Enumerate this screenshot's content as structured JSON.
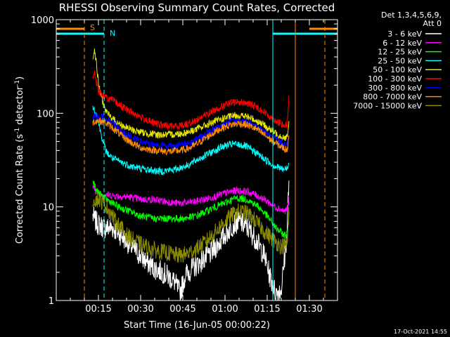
{
  "chart_data": {
    "type": "line",
    "title": "RHESSI Observing Summary Count Rates, Corrected",
    "xlabel": "Start Time (16-Jun-05 00:00:22)",
    "ylabel": "Corrected Count Rate (s⁻¹ detector⁻¹)",
    "ylabel_main": "Corrected Count Rate (s",
    "ylabel_sup1": "-1",
    "ylabel_mid": " detector",
    "ylabel_sup2": "-1",
    "ylabel_end": ")",
    "yscale": "log",
    "ylim": [
      1,
      1000
    ],
    "xlim_minutes": [
      0,
      100
    ],
    "x_ticks": [
      {
        "m": 15,
        "label": "00:15"
      },
      {
        "m": 30,
        "label": "00:30"
      },
      {
        "m": 45,
        "label": "00:45"
      },
      {
        "m": 60,
        "label": "01:00"
      },
      {
        "m": 75,
        "label": "01:15"
      },
      {
        "m": 90,
        "label": "01:30"
      }
    ],
    "y_ticks": [
      {
        "v": 1,
        "label": "1"
      },
      {
        "v": 10,
        "label": "10"
      },
      {
        "v": 100,
        "label": "100"
      },
      {
        "v": 1000,
        "label": "1000"
      }
    ],
    "legend_header": [
      "Det 1,3,4,5,6,9,",
      "Att 0"
    ],
    "legend": [
      {
        "name": "3 - 6 keV",
        "color": "#ffffff"
      },
      {
        "name": "6 - 12 keV",
        "color": "#ff00ff"
      },
      {
        "name": "12 - 25 keV",
        "color": "#00ff00"
      },
      {
        "name": "25 - 50 keV",
        "color": "#00ffff"
      },
      {
        "name": "50 - 100 keV",
        "color": "#e6e600"
      },
      {
        "name": "100 - 300 keV",
        "color": "#ff0000"
      },
      {
        "name": "300 - 800 keV",
        "color": "#0000ff"
      },
      {
        "name": "800 - 7000 keV",
        "color": "#ff8c00"
      },
      {
        "name": "7000 - 15000 keV",
        "color": "#8b8b00"
      }
    ],
    "series": [
      {
        "name": "3 - 6 keV",
        "color": "#ffffff",
        "points": [
          [
            13.0,
            8
          ],
          [
            14,
            7
          ],
          [
            15,
            6.5
          ],
          [
            17,
            6
          ],
          [
            20,
            6
          ],
          [
            23,
            5
          ],
          [
            26,
            4
          ],
          [
            29,
            3.2
          ],
          [
            32,
            2.6
          ],
          [
            35,
            2.2
          ],
          [
            38,
            2
          ],
          [
            42,
            1.6
          ],
          [
            44,
            1.2
          ],
          [
            46,
            1.9
          ],
          [
            50,
            2.4
          ],
          [
            55,
            3.2
          ],
          [
            60,
            5
          ],
          [
            63,
            6.5
          ],
          [
            65,
            7
          ],
          [
            68,
            6
          ],
          [
            71,
            4.5
          ],
          [
            74,
            3
          ],
          [
            76,
            1.8
          ],
          [
            78,
            1.2
          ],
          [
            80,
            1.3
          ],
          [
            81,
            2.5
          ],
          [
            82,
            5
          ],
          [
            82.8,
            22
          ]
        ]
      },
      {
        "name": "6 - 12 keV",
        "color": "#ff00ff",
        "points": [
          [
            13.0,
            16
          ],
          [
            14,
            15
          ],
          [
            15,
            14
          ],
          [
            18,
            13.5
          ],
          [
            22,
            13
          ],
          [
            26,
            12.8
          ],
          [
            30,
            12
          ],
          [
            34,
            12
          ],
          [
            38,
            11.5
          ],
          [
            42,
            11
          ],
          [
            46,
            11
          ],
          [
            50,
            11.5
          ],
          [
            55,
            12.5
          ],
          [
            60,
            14
          ],
          [
            64,
            15
          ],
          [
            68,
            14.5
          ],
          [
            72,
            13
          ],
          [
            75,
            11.5
          ],
          [
            78,
            10
          ],
          [
            81,
            9
          ],
          [
            82.2,
            9.5
          ],
          [
            82.8,
            12
          ]
        ]
      },
      {
        "name": "12 - 25 keV",
        "color": "#00ff00",
        "points": [
          [
            13.0,
            19
          ],
          [
            14,
            16
          ],
          [
            15,
            14
          ],
          [
            18,
            12
          ],
          [
            22,
            10
          ],
          [
            26,
            9
          ],
          [
            30,
            8
          ],
          [
            35,
            7.5
          ],
          [
            40,
            7.5
          ],
          [
            45,
            7.5
          ],
          [
            50,
            8
          ],
          [
            55,
            9.5
          ],
          [
            60,
            11
          ],
          [
            64,
            12.5
          ],
          [
            68,
            12
          ],
          [
            72,
            10
          ],
          [
            75,
            8
          ],
          [
            78,
            6
          ],
          [
            81,
            5
          ],
          [
            82.2,
            5.2
          ],
          [
            82.8,
            9
          ]
        ]
      },
      {
        "name": "25 - 50 keV",
        "color": "#00ffff",
        "points": [
          [
            13.0,
            120
          ],
          [
            14,
            100
          ],
          [
            15,
            80
          ],
          [
            16,
            60
          ],
          [
            17,
            45
          ],
          [
            18,
            38
          ],
          [
            20,
            33
          ],
          [
            23,
            30
          ],
          [
            27,
            27
          ],
          [
            32,
            25
          ],
          [
            37,
            24
          ],
          [
            42,
            25
          ],
          [
            47,
            28
          ],
          [
            51,
            33
          ],
          [
            55,
            38
          ],
          [
            59,
            44
          ],
          [
            63,
            47
          ],
          [
            67,
            45
          ],
          [
            71,
            38
          ],
          [
            75,
            31
          ],
          [
            78,
            27
          ],
          [
            81,
            25
          ],
          [
            82.2,
            26
          ],
          [
            82.8,
            30
          ]
        ]
      },
      {
        "name": "50 - 100 keV",
        "color": "#e6e600",
        "points": [
          [
            13.0,
            400
          ],
          [
            13.6,
            480
          ],
          [
            14.2,
            360
          ],
          [
            15,
            210
          ],
          [
            16,
            150
          ],
          [
            17,
            120
          ],
          [
            18,
            100
          ],
          [
            20,
            88
          ],
          [
            22,
            78
          ],
          [
            25,
            70
          ],
          [
            28,
            65
          ],
          [
            32,
            61
          ],
          [
            36,
            59
          ],
          [
            40,
            59
          ],
          [
            45,
            61
          ],
          [
            49,
            66
          ],
          [
            53,
            74
          ],
          [
            57,
            83
          ],
          [
            61,
            91
          ],
          [
            64,
            95
          ],
          [
            67,
            93
          ],
          [
            70,
            87
          ],
          [
            73,
            78
          ],
          [
            76,
            67
          ],
          [
            79,
            59
          ],
          [
            81,
            55
          ],
          [
            82.2,
            56
          ],
          [
            82.8,
            80
          ]
        ]
      },
      {
        "name": "100 - 300 keV",
        "color": "#ff0000",
        "points": [
          [
            13.0,
            240
          ],
          [
            13.6,
            270
          ],
          [
            14.2,
            220
          ],
          [
            15,
            175
          ],
          [
            16,
            160
          ],
          [
            18,
            145
          ],
          [
            20,
            138
          ],
          [
            22,
            125
          ],
          [
            25,
            110
          ],
          [
            28,
            98
          ],
          [
            31,
            88
          ],
          [
            34,
            80
          ],
          [
            37,
            75
          ],
          [
            40,
            73
          ],
          [
            43,
            73
          ],
          [
            46,
            76
          ],
          [
            49,
            82
          ],
          [
            52,
            92
          ],
          [
            55,
            103
          ],
          [
            58,
            115
          ],
          [
            61,
            126
          ],
          [
            64,
            132
          ],
          [
            67,
            130
          ],
          [
            70,
            122
          ],
          [
            73,
            108
          ],
          [
            76,
            92
          ],
          [
            79,
            80
          ],
          [
            81,
            73
          ],
          [
            82.2,
            75
          ],
          [
            82.8,
            160
          ]
        ]
      },
      {
        "name": "300 - 800 keV",
        "color": "#0000ff",
        "points": [
          [
            13.0,
            90
          ],
          [
            14,
            92
          ],
          [
            15,
            92
          ],
          [
            16,
            91
          ],
          [
            18,
            88
          ],
          [
            20,
            80
          ],
          [
            22,
            70
          ],
          [
            24,
            62
          ],
          [
            27,
            55
          ],
          [
            30,
            50
          ],
          [
            33,
            47
          ],
          [
            36,
            46
          ],
          [
            40,
            45
          ],
          [
            44,
            46
          ],
          [
            47,
            48
          ],
          [
            50,
            53
          ],
          [
            53,
            60
          ],
          [
            56,
            68
          ],
          [
            59,
            76
          ],
          [
            62,
            81
          ],
          [
            65,
            83
          ],
          [
            68,
            80
          ],
          [
            71,
            73
          ],
          [
            74,
            64
          ],
          [
            77,
            56
          ],
          [
            80,
            49
          ],
          [
            81.5,
            46
          ],
          [
            82.2,
            48
          ],
          [
            82.8,
            60
          ]
        ]
      },
      {
        "name": "800 - 7000 keV",
        "color": "#ff8c00",
        "points": [
          [
            13.0,
            80
          ],
          [
            14,
            83
          ],
          [
            15,
            83
          ],
          [
            16,
            82
          ],
          [
            18,
            78
          ],
          [
            20,
            70
          ],
          [
            22,
            62
          ],
          [
            24,
            55
          ],
          [
            27,
            48
          ],
          [
            30,
            43
          ],
          [
            33,
            41
          ],
          [
            36,
            40
          ],
          [
            40,
            39
          ],
          [
            44,
            40
          ],
          [
            47,
            42
          ],
          [
            50,
            47
          ],
          [
            53,
            54
          ],
          [
            56,
            62
          ],
          [
            59,
            70
          ],
          [
            62,
            75
          ],
          [
            65,
            78
          ],
          [
            68,
            75
          ],
          [
            71,
            68
          ],
          [
            74,
            59
          ],
          [
            77,
            50
          ],
          [
            80,
            44
          ],
          [
            81.5,
            41
          ],
          [
            82.2,
            42
          ],
          [
            82.8,
            55
          ]
        ]
      },
      {
        "name": "7000 - 15000 keV",
        "color": "#8b8b00",
        "points": [
          [
            13.0,
            12
          ],
          [
            15,
            12
          ],
          [
            17,
            11
          ],
          [
            19,
            9
          ],
          [
            21,
            7
          ],
          [
            23,
            6
          ],
          [
            25,
            5
          ],
          [
            27,
            4.5
          ],
          [
            30,
            4
          ],
          [
            33,
            3.6
          ],
          [
            36,
            3.4
          ],
          [
            40,
            3.2
          ],
          [
            44,
            3
          ],
          [
            47,
            3.2
          ],
          [
            50,
            3.6
          ],
          [
            53,
            4.2
          ],
          [
            56,
            5.2
          ],
          [
            59,
            6.5
          ],
          [
            62,
            8
          ],
          [
            65,
            9
          ],
          [
            68,
            8.5
          ],
          [
            71,
            7
          ],
          [
            74,
            5.5
          ],
          [
            77,
            4.5
          ],
          [
            80,
            3.8
          ],
          [
            82.2,
            4
          ],
          [
            82.8,
            10
          ]
        ]
      }
    ],
    "markers": {
      "saa_label": "S",
      "night_label": "N",
      "saa_color": "#ff8c00",
      "night_color": "#00ffff",
      "saa_bars": [
        [
          0,
          10
        ],
        [
          90,
          100
        ]
      ],
      "night_bars": [
        [
          0,
          17
        ],
        [
          77,
          100
        ]
      ],
      "saa_solid": [
        85
      ],
      "saa_dashed": [
        10,
        95.5
      ],
      "night_solid": [
        77
      ],
      "night_dashed": [
        17
      ]
    }
  },
  "footer": {
    "timestamp": "17-Oct-2021 14:55"
  }
}
